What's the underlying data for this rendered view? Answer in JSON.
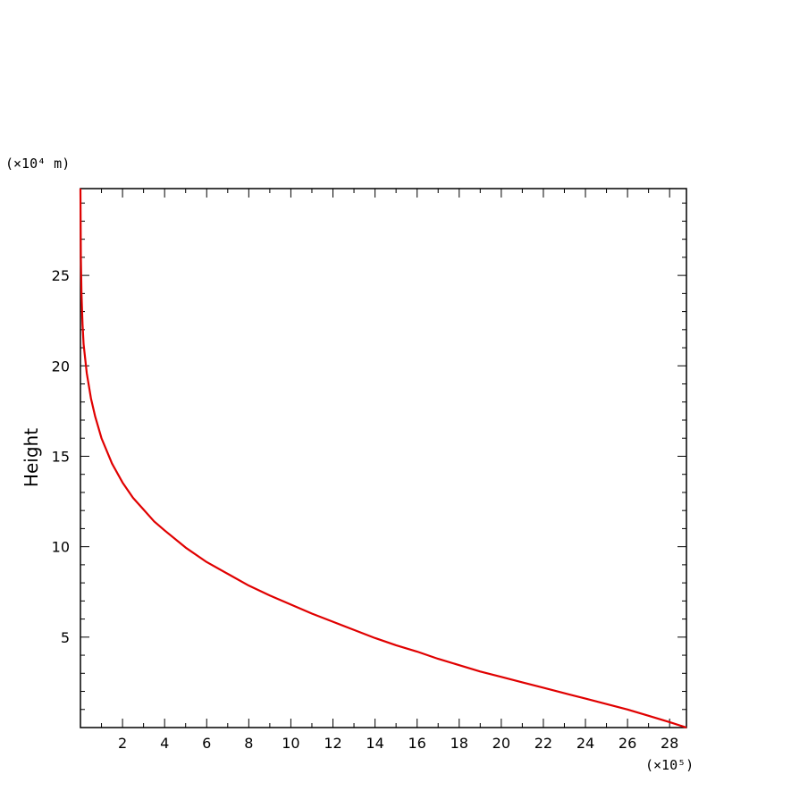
{
  "chart_data": {
    "type": "line",
    "title": "",
    "xlabel": "",
    "ylabel": "Height",
    "x_multiplier": "(×10⁵)",
    "y_multiplier": "(×10⁴ m)",
    "xlim": [
      0,
      28.8
    ],
    "ylim": [
      0,
      29.8
    ],
    "xticks": [
      2,
      4,
      6,
      8,
      10,
      12,
      14,
      16,
      18,
      20,
      22,
      24,
      26,
      28
    ],
    "yticks": [
      5,
      10,
      15,
      20,
      25
    ],
    "grid": false,
    "line_color": "#e00000",
    "series": [
      {
        "x": [
          28.8,
          28,
          27,
          26,
          25,
          24,
          23,
          22,
          21,
          20,
          19,
          18,
          17,
          16,
          15,
          14,
          13,
          12,
          11,
          10,
          9,
          8,
          7,
          6,
          5,
          4,
          3.5,
          3,
          2.5,
          2,
          1.5,
          1,
          0.7,
          0.5,
          0.3,
          0.15,
          0.1,
          0.05,
          0.02,
          0.0
        ],
        "y": [
          0.0,
          0.3,
          0.65,
          1.0,
          1.3,
          1.6,
          1.9,
          2.2,
          2.5,
          2.8,
          3.1,
          3.45,
          3.8,
          4.2,
          4.55,
          4.95,
          5.4,
          5.85,
          6.3,
          6.8,
          7.3,
          7.85,
          8.5,
          9.15,
          9.95,
          10.9,
          11.4,
          12.05,
          12.7,
          13.55,
          14.6,
          16.0,
          17.2,
          18.2,
          19.6,
          21.2,
          22.3,
          24.0,
          26.0,
          29.8
        ]
      }
    ]
  }
}
